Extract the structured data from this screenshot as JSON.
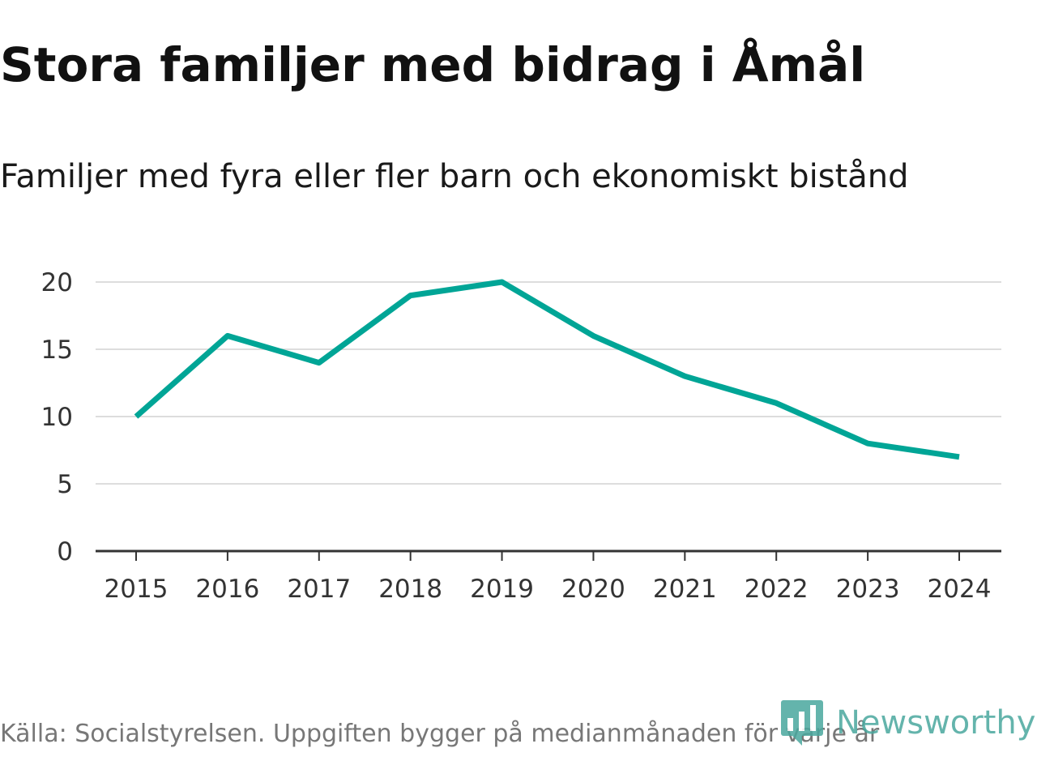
{
  "title": "Stora familjer med bidrag i Åmål",
  "subtitle": "Familjer med fyra eller fler barn och ekonomiskt bistånd",
  "source": "Källa: Socialstyrelsen. Uppgiften bygger på medianmånaden för varje år",
  "brand": {
    "name": "Newsworthy",
    "color": "#4aa89e"
  },
  "colors": {
    "line": "#00a596",
    "grid": "#dddddd",
    "axis": "#333333",
    "tick_text": "#333333"
  },
  "chart_data": {
    "type": "line",
    "title": "Stora familjer med bidrag i Åmål",
    "subtitle": "Familjer med fyra eller fler barn och ekonomiskt bistånd",
    "xlabel": "",
    "ylabel": "",
    "categories": [
      "2015",
      "2016",
      "2017",
      "2018",
      "2019",
      "2020",
      "2021",
      "2022",
      "2023",
      "2024"
    ],
    "series": [
      {
        "name": "Familjer med fyra eller fler barn och ekonomiskt bistånd",
        "values": [
          10,
          16,
          14,
          19,
          20,
          16,
          13,
          11,
          8,
          7
        ]
      }
    ],
    "ylim": [
      0,
      20
    ],
    "yticks": [
      0,
      5,
      10,
      15,
      20
    ],
    "grid": true,
    "legend": "none"
  }
}
